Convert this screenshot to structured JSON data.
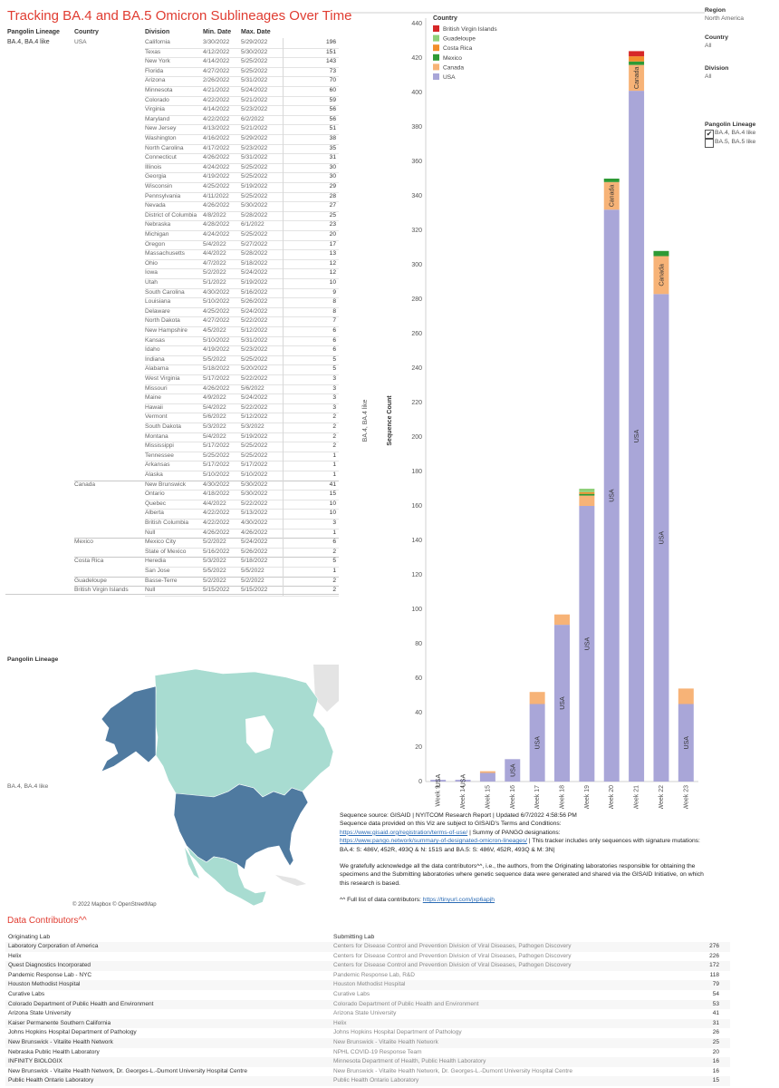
{
  "title": "Tracking BA.4 and BA.5 Omicron Sublineages Over Time",
  "table": {
    "headers": {
      "lineage": "Pangolin Lineage",
      "country": "Country",
      "division": "Division",
      "min": "Min. Date",
      "max": "Max. Date"
    },
    "lineage_value": "BA.4, BA.4 like",
    "groups": [
      {
        "country": "USA",
        "rows": [
          [
            "California",
            "3/30/2022",
            "5/29/2022",
            "196"
          ],
          [
            "Texas",
            "4/12/2022",
            "5/30/2022",
            "151"
          ],
          [
            "New York",
            "4/14/2022",
            "5/25/2022",
            "143"
          ],
          [
            "Florida",
            "4/27/2022",
            "5/25/2022",
            "73"
          ],
          [
            "Arizona",
            "2/26/2022",
            "5/31/2022",
            "70"
          ],
          [
            "Minnesota",
            "4/21/2022",
            "5/24/2022",
            "60"
          ],
          [
            "Colorado",
            "4/22/2022",
            "5/21/2022",
            "59"
          ],
          [
            "Virginia",
            "4/14/2022",
            "5/23/2022",
            "56"
          ],
          [
            "Maryland",
            "4/22/2022",
            "6/2/2022",
            "56"
          ],
          [
            "New Jersey",
            "4/13/2022",
            "5/21/2022",
            "51"
          ],
          [
            "Washington",
            "4/16/2022",
            "5/29/2022",
            "38"
          ],
          [
            "North Carolina",
            "4/17/2022",
            "5/23/2022",
            "35"
          ],
          [
            "Connecticut",
            "4/26/2022",
            "5/31/2022",
            "31"
          ],
          [
            "Illinois",
            "4/24/2022",
            "5/25/2022",
            "30"
          ],
          [
            "Georgia",
            "4/19/2022",
            "5/25/2022",
            "30"
          ],
          [
            "Wisconsin",
            "4/25/2022",
            "5/19/2022",
            "29"
          ],
          [
            "Pennsylvania",
            "4/11/2022",
            "5/25/2022",
            "28"
          ],
          [
            "Nevada",
            "4/26/2022",
            "5/30/2022",
            "27"
          ],
          [
            "District of Columbia",
            "4/8/2022",
            "5/28/2022",
            "25"
          ],
          [
            "Nebraska",
            "4/28/2022",
            "6/1/2022",
            "23"
          ],
          [
            "Michigan",
            "4/24/2022",
            "5/25/2022",
            "20"
          ],
          [
            "Oregon",
            "5/4/2022",
            "5/27/2022",
            "17"
          ],
          [
            "Massachusetts",
            "4/4/2022",
            "5/28/2022",
            "13"
          ],
          [
            "Ohio",
            "4/7/2022",
            "5/18/2022",
            "12"
          ],
          [
            "Iowa",
            "5/2/2022",
            "5/24/2022",
            "12"
          ],
          [
            "Utah",
            "5/1/2022",
            "5/19/2022",
            "10"
          ],
          [
            "South Carolina",
            "4/30/2022",
            "5/16/2022",
            "9"
          ],
          [
            "Louisiana",
            "5/10/2022",
            "5/26/2022",
            "8"
          ],
          [
            "Delaware",
            "4/25/2022",
            "5/24/2022",
            "8"
          ],
          [
            "North Dakota",
            "4/27/2022",
            "5/22/2022",
            "7"
          ],
          [
            "New Hampshire",
            "4/5/2022",
            "5/12/2022",
            "6"
          ],
          [
            "Kansas",
            "5/10/2022",
            "5/31/2022",
            "6"
          ],
          [
            "Idaho",
            "4/19/2022",
            "5/23/2022",
            "6"
          ],
          [
            "Indiana",
            "5/5/2022",
            "5/25/2022",
            "5"
          ],
          [
            "Alabama",
            "5/18/2022",
            "5/20/2022",
            "5"
          ],
          [
            "West Virginia",
            "5/17/2022",
            "5/22/2022",
            "3"
          ],
          [
            "Missouri",
            "4/26/2022",
            "5/6/2022",
            "3"
          ],
          [
            "Maine",
            "4/9/2022",
            "5/24/2022",
            "3"
          ],
          [
            "Hawaii",
            "5/4/2022",
            "5/22/2022",
            "3"
          ],
          [
            "Vermont",
            "5/6/2022",
            "5/12/2022",
            "2"
          ],
          [
            "South Dakota",
            "5/3/2022",
            "5/3/2022",
            "2"
          ],
          [
            "Montana",
            "5/4/2022",
            "5/19/2022",
            "2"
          ],
          [
            "Mississippi",
            "5/17/2022",
            "5/25/2022",
            "2"
          ],
          [
            "Tennessee",
            "5/25/2022",
            "5/25/2022",
            "1"
          ],
          [
            "Arkansas",
            "5/17/2022",
            "5/17/2022",
            "1"
          ],
          [
            "Alaska",
            "5/10/2022",
            "5/10/2022",
            "1"
          ]
        ]
      },
      {
        "country": "Canada",
        "rows": [
          [
            "New Brunswick",
            "4/30/2022",
            "5/30/2022",
            "41"
          ],
          [
            "Ontario",
            "4/18/2022",
            "5/30/2022",
            "15"
          ],
          [
            "Quebec",
            "4/4/2022",
            "5/22/2022",
            "10"
          ],
          [
            "Alberta",
            "4/22/2022",
            "5/13/2022",
            "10"
          ],
          [
            "British Columbia",
            "4/22/2022",
            "4/30/2022",
            "3"
          ],
          [
            "Null",
            "4/26/2022",
            "4/26/2022",
            "1"
          ]
        ]
      },
      {
        "country": "Mexico",
        "rows": [
          [
            "Mexico City",
            "5/2/2022",
            "5/24/2022",
            "6"
          ],
          [
            "State of Mexico",
            "5/16/2022",
            "5/26/2022",
            "2"
          ]
        ]
      },
      {
        "country": "Costa Rica",
        "rows": [
          [
            "Heredia",
            "5/3/2022",
            "5/18/2022",
            "5"
          ],
          [
            "San Jose",
            "5/5/2022",
            "5/5/2022",
            "1"
          ]
        ]
      },
      {
        "country": "Guadeloupe",
        "rows": [
          [
            "Basse-Terre",
            "5/2/2022",
            "5/2/2022",
            "2"
          ]
        ]
      },
      {
        "country": "British Virgin Islands",
        "rows": [
          [
            "Null",
            "5/15/2022",
            "5/15/2022",
            "2"
          ]
        ]
      }
    ]
  },
  "filters": {
    "region_label": "Region",
    "region_value": "North America",
    "country_label": "Country",
    "country_value": "All",
    "division_label": "Division",
    "division_value": "All",
    "lineage_label": "Pangolin Lineage",
    "lineage_options": [
      {
        "label": "BA.4, BA.4 like",
        "checked": true
      },
      {
        "label": "BA.5, BA.5 like",
        "checked": false
      }
    ]
  },
  "chart_data": {
    "type": "bar",
    "stacked": true,
    "row_label": "BA.4, BA.4 like",
    "ylabel": "Sequence Count",
    "ylim": [
      0,
      440
    ],
    "yticks": [
      0,
      20,
      40,
      60,
      80,
      100,
      120,
      140,
      160,
      180,
      200,
      220,
      240,
      260,
      280,
      300,
      320,
      340,
      360,
      380,
      400,
      420,
      440
    ],
    "grid": false,
    "legend": {
      "title": "Country",
      "placement": "top-left"
    },
    "categories": [
      "Week 9",
      "Week 14",
      "Week 15",
      "Week 16",
      "Week 17",
      "Week 18",
      "Week 19",
      "Week 20",
      "Week 21",
      "Week 22",
      "Week 23"
    ],
    "series": [
      {
        "name": "USA",
        "color": "#a9a6d8",
        "values": [
          1,
          1,
          5,
          13,
          45,
          91,
          160,
          332,
          401,
          283,
          45
        ]
      },
      {
        "name": "Canada",
        "color": "#f7b377",
        "values": [
          0,
          0,
          1,
          0,
          7,
          6,
          6,
          16,
          15,
          22,
          9
        ]
      },
      {
        "name": "Mexico",
        "color": "#2e9a35",
        "values": [
          0,
          0,
          0,
          0,
          0,
          0,
          1,
          2,
          2,
          3,
          0
        ]
      },
      {
        "name": "Costa Rica",
        "color": "#f28e2b",
        "values": [
          0,
          0,
          0,
          0,
          0,
          0,
          1,
          0,
          3,
          0,
          0
        ]
      },
      {
        "name": "Guadeloupe",
        "color": "#8fd07a",
        "values": [
          0,
          0,
          0,
          0,
          0,
          0,
          2,
          0,
          0,
          0,
          0
        ]
      },
      {
        "name": "British Virgin Islands",
        "color": "#d62728",
        "values": [
          0,
          0,
          0,
          0,
          0,
          0,
          0,
          0,
          3,
          0,
          0
        ]
      }
    ],
    "legend_order": [
      "British Virgin Islands",
      "Guadeloupe",
      "Costa Rica",
      "Mexico",
      "Canada",
      "USA"
    ],
    "bar_labels": [
      {
        "week": "Week 9",
        "series": "USA",
        "text": "USA"
      },
      {
        "week": "Week 14",
        "series": "USA",
        "text": "USA"
      },
      {
        "week": "Week 16",
        "series": "USA",
        "text": "USA"
      },
      {
        "week": "Week 17",
        "series": "USA",
        "text": "USA"
      },
      {
        "week": "Week 18",
        "series": "USA",
        "text": "USA"
      },
      {
        "week": "Week 19",
        "series": "USA",
        "text": "USA"
      },
      {
        "week": "Week 20",
        "series": "USA",
        "text": "USA"
      },
      {
        "week": "Week 21",
        "series": "USA",
        "text": "USA"
      },
      {
        "week": "Week 22",
        "series": "USA",
        "text": "USA"
      },
      {
        "week": "Week 23",
        "series": "USA",
        "text": "USA"
      },
      {
        "week": "Week 20",
        "series": "Canada",
        "text": "Canada"
      },
      {
        "week": "Week 21",
        "series": "Canada",
        "text": "Canada"
      },
      {
        "week": "Week 22",
        "series": "Canada",
        "text": "Canada"
      }
    ]
  },
  "footer": {
    "line1": "Sequence source: GISAID  |  NYITCOM  Research Report  |  Updated  6/7/2022 4:58:56 PM",
    "line2": "Sequence data provided on this Viz are subject to GISAID's Terms and Conditions:",
    "link1": "https://www.gisaid.org/registration/terms-of-use/",
    "mid1": " | Summy of PANGO designations:",
    "link2": "https://www.pango.network/summary-of-designated-omicron-lineages/",
    "mid2": " | This tracker includes only sequences with signature mutations: BA.4: S: 486V, 452R, 493Q & N: 151S and BA.5: S: 486V, 452R, 493Q & M: 3N|",
    "ack": "We gratefully acknowledge all the data contributors^^, i.e., the authors, from the Originating laboratories responsible for obtaining the specimens and the Submitting laboratories where genetic sequence data were generated and shared via the GISAID Initiative, on which this research is based.",
    "full_list": "^^ Full list of data contributors: ",
    "link3": "https://tinyurl.com/jxp6apjh"
  },
  "map": {
    "header": "Pangolin Lineage",
    "row_label": "BA.4, BA.4 like",
    "attribution": "© 2022 Mapbox © OpenStreetMap",
    "colors": {
      "usa": "#4f7aa0",
      "canada": "#a8dcd1",
      "mexico": "#a8dcd1",
      "water": "#ffffff",
      "land_other": "#e8e8e8"
    }
  },
  "contributors": {
    "title": "Data Contributors^^",
    "header_orig": "Originating Lab",
    "header_sub": "Submitting Lab",
    "rows": [
      [
        "Laboratory Corporation of America",
        "Centers for Disease Control and Prevention   Division of Viral Diseases, Pathogen Discovery",
        "276"
      ],
      [
        "Helix",
        "Centers for Disease Control and Prevention   Division of Viral Diseases, Pathogen Discovery",
        "226"
      ],
      [
        "Quest Diagnostics Incorporated",
        "Centers for Disease Control and Prevention   Division of Viral Diseases, Pathogen Discovery",
        "172"
      ],
      [
        "Pandemic Response Lab - NYC",
        "Pandemic Response Lab, R&D",
        "118"
      ],
      [
        "Houston Methodist Hospital",
        "Houston Methodist Hospital",
        "79"
      ],
      [
        "Curative Labs",
        "Curative Labs",
        "54"
      ],
      [
        "Colorado Department of Public Health and Environment",
        "Colorado Department of Public Health and Environment",
        "53"
      ],
      [
        "Arizona State University",
        "Arizona State University",
        "41"
      ],
      [
        "Kaiser Permanente Southern California",
        "Helix",
        "31"
      ],
      [
        "Johns Hopkins Hospital Department of Pathology",
        "Johns Hopkins Hospital Department of Pathology",
        "26"
      ],
      [
        "New Brunswick - Vitalite Health Network",
        "New Brunswick - Vitalite Health Network",
        "25"
      ],
      [
        "Nebraska Public Health Laboratory",
        "NPHL COVID-19 Response Team",
        "20"
      ],
      [
        "INFINITY BIOLOGIX",
        "Minnesota Department of Health, Public Health Laboratory",
        "16"
      ],
      [
        "New Brunswick - Vitalite Health Network, Dr. Georges-L.-Dumont University Hospital Centre",
        "New Brunswick - Vitalite Health Network, Dr. Georges-L.-Dumont University Hospital Centre",
        "16"
      ],
      [
        "Public Health Ontario Laboratory",
        "Public Health Ontario Laboratory",
        "15"
      ]
    ]
  }
}
